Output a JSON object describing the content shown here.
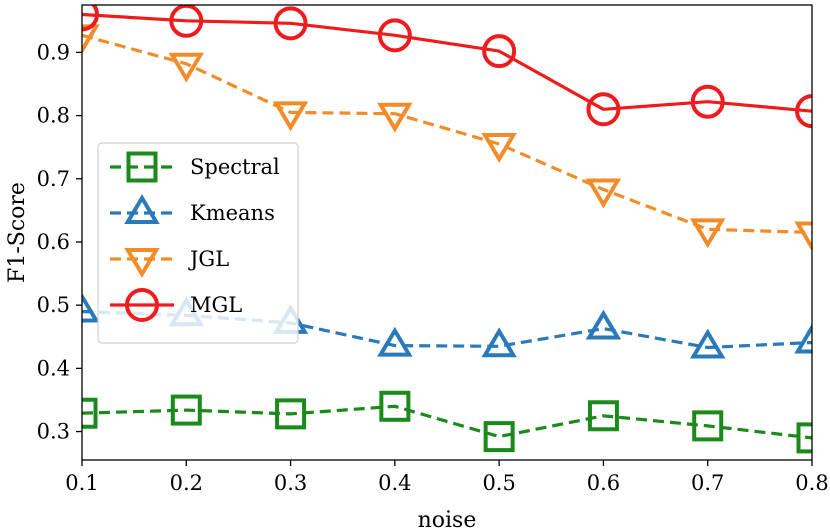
{
  "chart_data": {
    "type": "line",
    "title": "",
    "xlabel": "noise",
    "ylabel": "F1-Score",
    "x": [
      0.1,
      0.2,
      0.3,
      0.4,
      0.5,
      0.6,
      0.7,
      0.8
    ],
    "xlim": [
      0.1,
      0.8
    ],
    "ylim": [
      0.255,
      0.975
    ],
    "xticks": [
      {
        "value": 0.1,
        "label": "0.1"
      },
      {
        "value": 0.2,
        "label": "0.2"
      },
      {
        "value": 0.3,
        "label": "0.3"
      },
      {
        "value": 0.4,
        "label": "0.4"
      },
      {
        "value": 0.5,
        "label": "0.5"
      },
      {
        "value": 0.6,
        "label": "0.6"
      },
      {
        "value": 0.7,
        "label": "0.7"
      },
      {
        "value": 0.8,
        "label": "0.8"
      }
    ],
    "yticks": [
      {
        "value": 0.3,
        "label": "0.3"
      },
      {
        "value": 0.4,
        "label": "0.4"
      },
      {
        "value": 0.5,
        "label": "0.5"
      },
      {
        "value": 0.6,
        "label": "0.6"
      },
      {
        "value": 0.7,
        "label": "0.7"
      },
      {
        "value": 0.8,
        "label": "0.8"
      },
      {
        "value": 0.9,
        "label": "0.9"
      }
    ],
    "grid": false,
    "legend_position": "upper-left",
    "series": [
      {
        "name": "Spectral",
        "color": "#1a8a1a",
        "dash": true,
        "marker": "square",
        "values": [
          0.329,
          0.334,
          0.328,
          0.34,
          0.292,
          0.325,
          0.309,
          0.29
        ]
      },
      {
        "name": "Kmeans",
        "color": "#2a7ab9",
        "dash": true,
        "marker": "triangle-up",
        "values": [
          0.49,
          0.484,
          0.472,
          0.436,
          0.435,
          0.463,
          0.433,
          0.441
        ]
      },
      {
        "name": "JGL",
        "color": "#f28c28",
        "dash": true,
        "marker": "triangle-down",
        "values": [
          0.927,
          0.882,
          0.805,
          0.803,
          0.755,
          0.683,
          0.62,
          0.615
        ]
      },
      {
        "name": "MGL",
        "color": "#ee1c1c",
        "dash": false,
        "marker": "circle",
        "values": [
          0.96,
          0.95,
          0.946,
          0.927,
          0.902,
          0.81,
          0.822,
          0.807
        ]
      }
    ]
  }
}
